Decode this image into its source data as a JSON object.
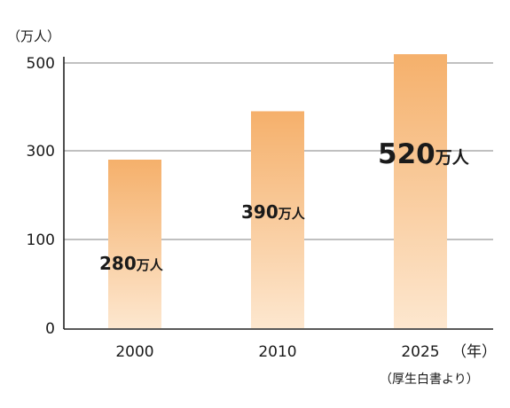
{
  "chart_data": {
    "type": "bar",
    "title": "",
    "ylabel": "（万人）",
    "xlabel": "（年）",
    "source": "（厚生白書より）",
    "categories": [
      "2000",
      "2010",
      "2025"
    ],
    "values": [
      280,
      390,
      520
    ],
    "data_labels": [
      {
        "number": "280",
        "unit": "万人"
      },
      {
        "number": "390",
        "unit": "万人"
      },
      {
        "number": "520",
        "unit": "万人"
      }
    ],
    "y_ticks": [
      {
        "label": "0",
        "value": 0
      },
      {
        "label": "100",
        "value": 100
      },
      {
        "label": "300",
        "value": 300
      },
      {
        "label": "500",
        "value": 500
      }
    ],
    "y_tick_positions": [
      0,
      1,
      2,
      3
    ],
    "grid": true,
    "bar_gradient": {
      "top": "#f5b06b",
      "bottom": "#fde7cf"
    },
    "gridline_color": "#9a9a9a",
    "axis_color": "#222222"
  }
}
